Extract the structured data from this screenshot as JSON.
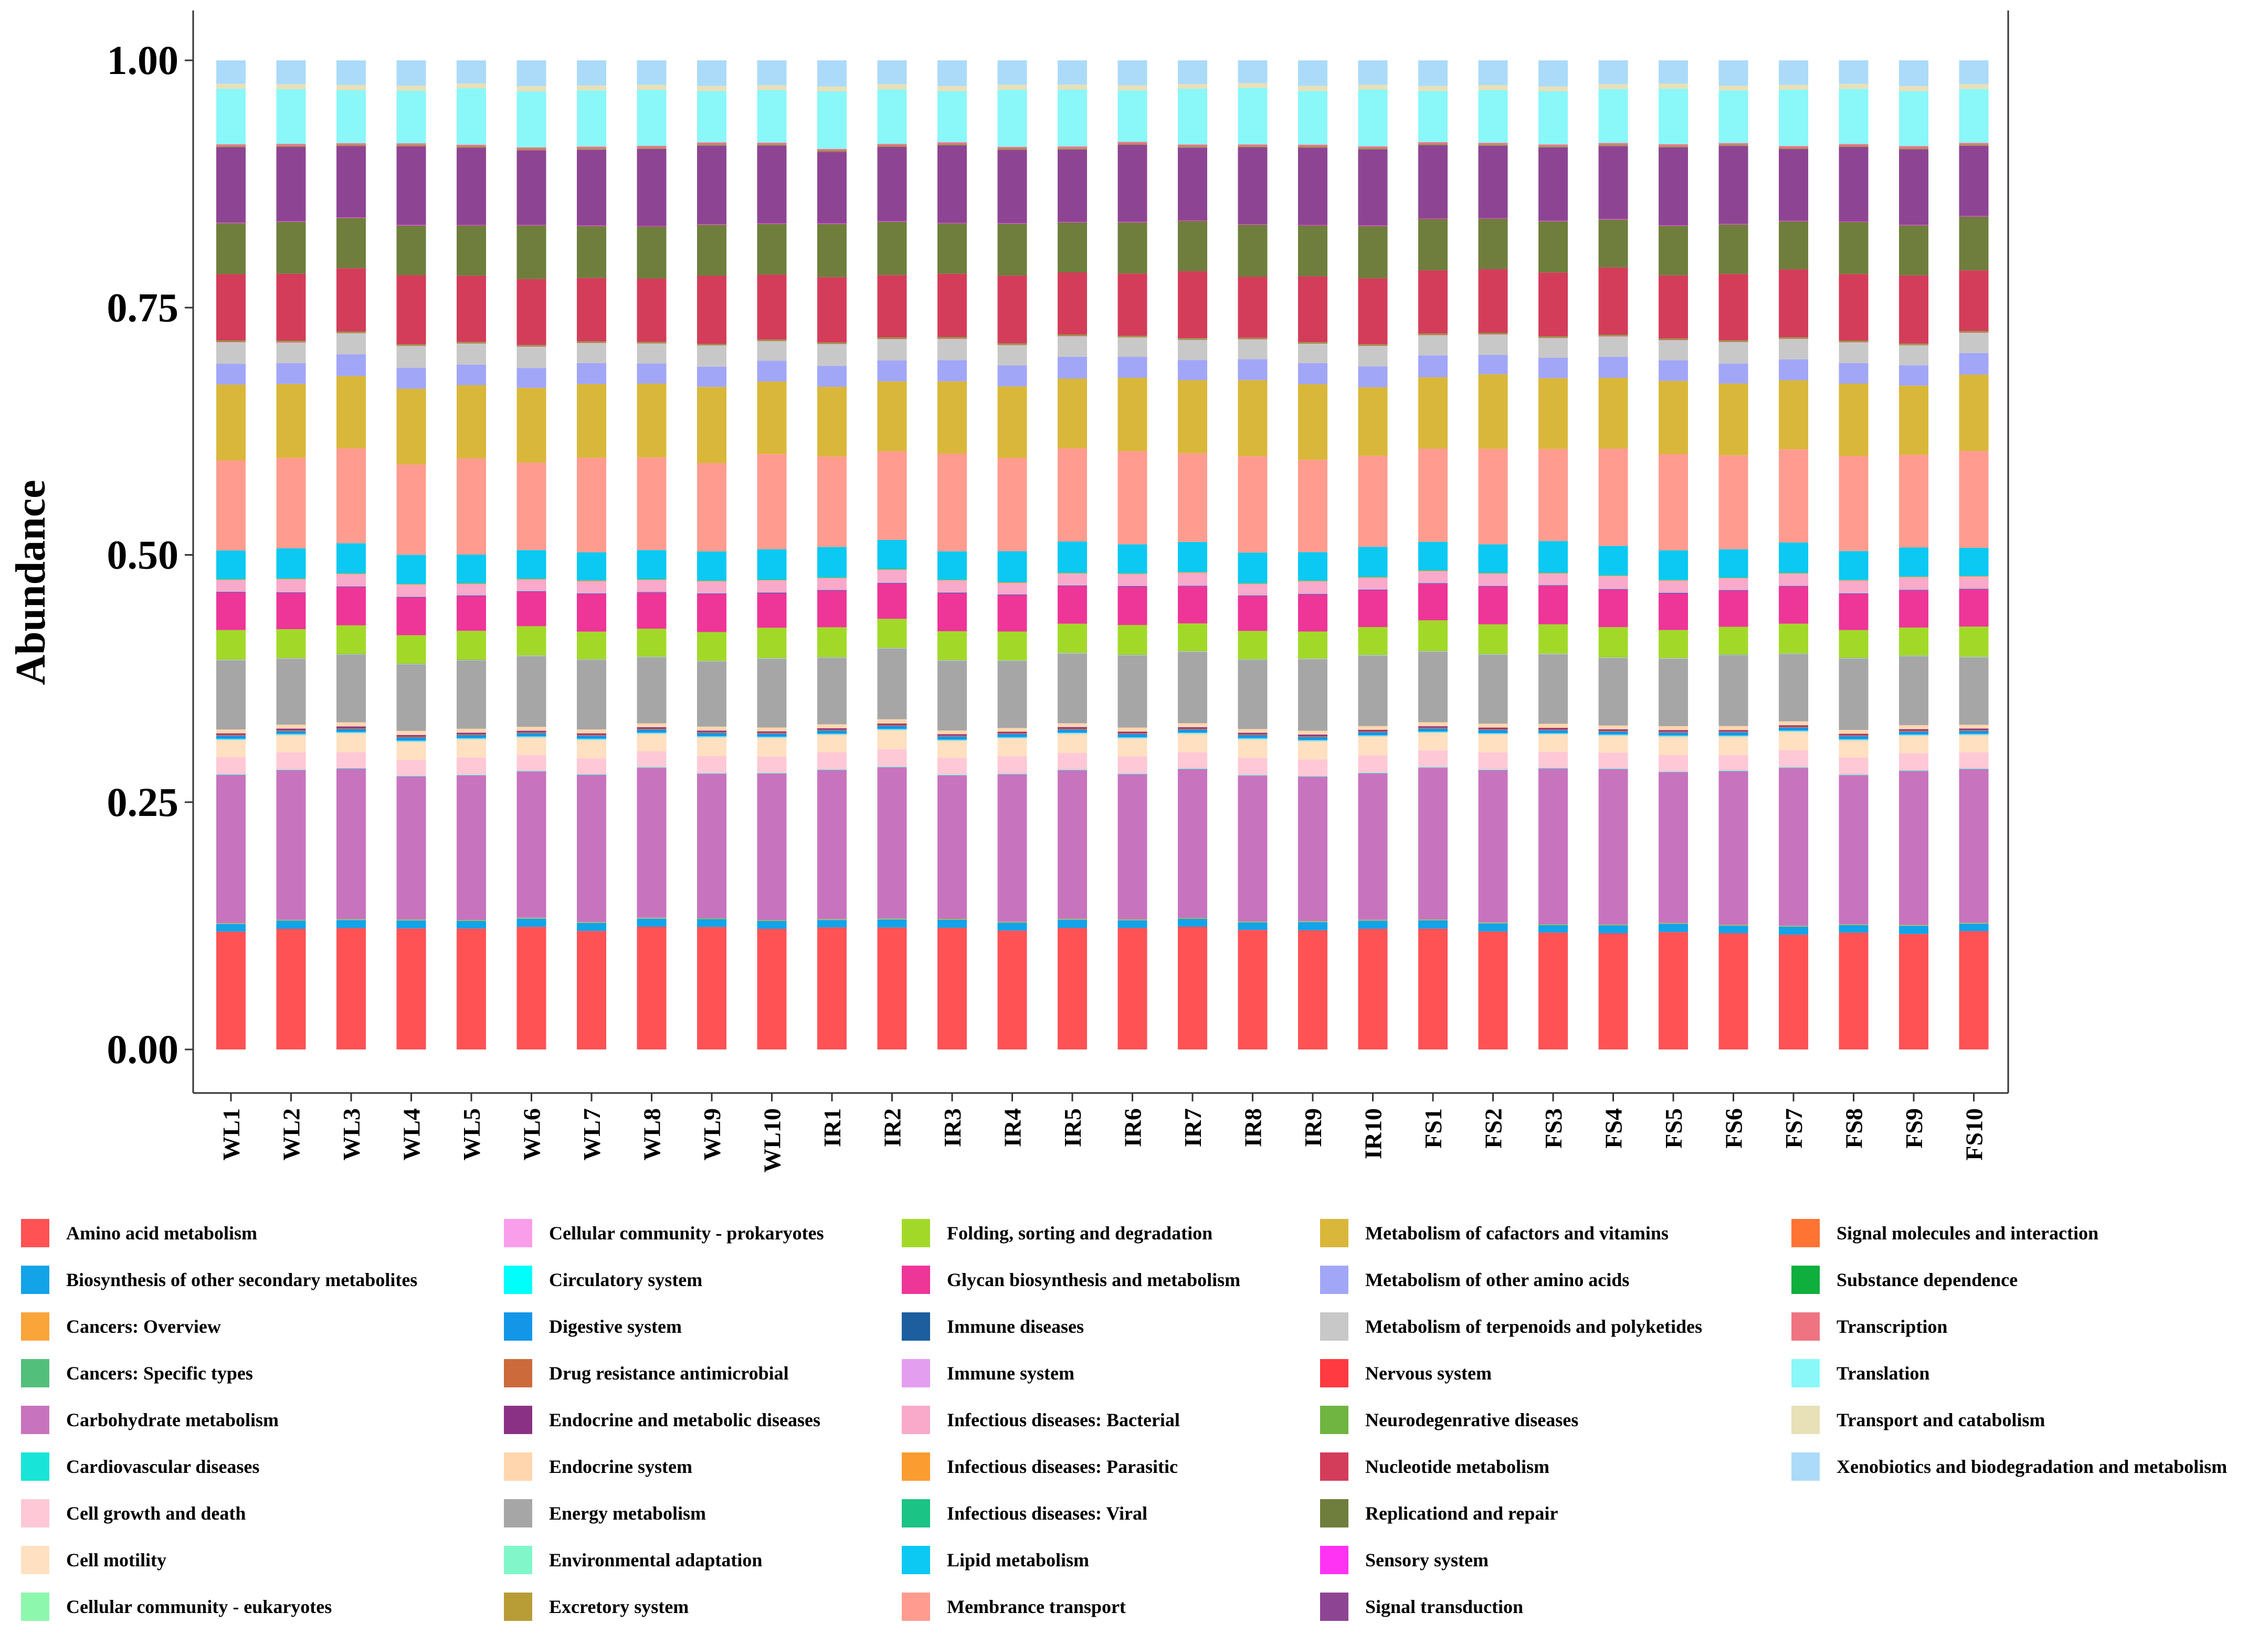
{
  "chart_data": {
    "type": "bar",
    "stacked": true,
    "title": "",
    "xlabel": "",
    "ylabel": "Abundance",
    "ylim": [
      0,
      1
    ],
    "yticks": [
      "0.00",
      "0.25",
      "0.50",
      "0.75",
      "1.00"
    ],
    "categories": [
      "WL1",
      "WL2",
      "WL3",
      "WL4",
      "WL5",
      "WL6",
      "WL7",
      "WL8",
      "WL9",
      "WL10",
      "IR1",
      "IR2",
      "IR3",
      "IR4",
      "IR5",
      "IR6",
      "IR7",
      "IR8",
      "IR9",
      "IR10",
      "FS1",
      "FS2",
      "FS3",
      "FS4",
      "FS5",
      "FS6",
      "FS7",
      "FS8",
      "FS9",
      "FS10"
    ],
    "series": [
      {
        "name": "Amino acid metabolism",
        "color": "#FF5255",
        "base": 0.121,
        "values": [
          0.121,
          0.122,
          0.122,
          0.122,
          0.124,
          0.125,
          0.121,
          0.123,
          0.124,
          0.123,
          0.123,
          0.122,
          0.124,
          0.121,
          0.122,
          0.124,
          0.124,
          0.123,
          0.123,
          0.123,
          0.122,
          0.121,
          0.118,
          0.119,
          0.12,
          0.119,
          0.118,
          0.12,
          0.118,
          0.121
        ]
      },
      {
        "name": "Biosynthesis of other secondary metabolites",
        "color": "#12A3E8",
        "base": 0.008
      },
      {
        "name": "Cancers: Overview",
        "color": "#F9A53A",
        "base": 0.0005
      },
      {
        "name": "Cancers: Specific types",
        "color": "#52C07A",
        "base": 0.0005
      },
      {
        "name": "Carbohydrate metabolism",
        "color": "#C873BE",
        "base": 0.152,
        "values": [
          0.152,
          0.151,
          0.151,
          0.144,
          0.148,
          0.149,
          0.15,
          0.15,
          0.146,
          0.149,
          0.15,
          0.151,
          0.146,
          0.15,
          0.149,
          0.148,
          0.15,
          0.15,
          0.149,
          0.149,
          0.153,
          0.156,
          0.157,
          0.159,
          0.154,
          0.157,
          0.162,
          0.153,
          0.157,
          0.157
        ]
      },
      {
        "name": "Cardiovascular diseases",
        "color": "#18E5D8",
        "base": 0.0005
      },
      {
        "name": "Cell growth and death",
        "color": "#FFC8D6",
        "base": 0.017
      },
      {
        "name": "Cell motility",
        "color": "#FFE0C0",
        "base": 0.018
      },
      {
        "name": "Cellular community - eukaryotes",
        "color": "#8EF7AE",
        "base": 0.0005
      },
      {
        "name": "Cellular community - prokaryotes",
        "color": "#F99EEB",
        "base": 0.0005
      },
      {
        "name": "Circulatory system",
        "color": "#00FFFB",
        "base": 0.0005
      },
      {
        "name": "Digestive system",
        "color": "#1396E8",
        "base": 0.003
      },
      {
        "name": "Drug resistance antimicrobial",
        "color": "#CC6A3B",
        "base": 0.001
      },
      {
        "name": "Endocrine and metabolic diseases",
        "color": "#8B3185",
        "base": 0.0015
      },
      {
        "name": "Endocrine system",
        "color": "#FFD6AE",
        "base": 0.004
      },
      {
        "name": "Energy metabolism",
        "color": "#A6A6A6",
        "base": 0.07
      },
      {
        "name": "Environmental adaptation",
        "color": "#81F7C9",
        "base": 0.0005
      },
      {
        "name": "Excretory system",
        "color": "#B89C35",
        "base": 0.0005
      },
      {
        "name": "Folding, sorting and degradation",
        "color": "#A2D929",
        "base": 0.029
      },
      {
        "name": "Glycan biosynthesis and metabolism",
        "color": "#EE3598",
        "base": 0.037
      },
      {
        "name": "Immune diseases",
        "color": "#1D5E9E",
        "base": 0.0005
      },
      {
        "name": "Immune system",
        "color": "#E49EF0",
        "base": 0.0005
      },
      {
        "name": "Infectious diseases: Bacterial",
        "color": "#F9A9C9",
        "base": 0.012
      },
      {
        "name": "Infectious diseases: Parasitic",
        "color": "#FA9C30",
        "base": 0.0005
      },
      {
        "name": "Infectious diseases: Viral",
        "color": "#1BC384",
        "base": 0.0005
      },
      {
        "name": "Lipid metabolism",
        "color": "#0BC9F2",
        "base": 0.03
      },
      {
        "name": "Membrance transport",
        "color": "#FF9C8F",
        "base": 0.094
      },
      {
        "name": "Metabolism of cafactors and vitamins",
        "color": "#D9B73A",
        "base": 0.074
      },
      {
        "name": "Metabolism of other amino acids",
        "color": "#A2A6F7",
        "base": 0.021
      },
      {
        "name": "Metabolism of terpenoids and polyketides",
        "color": "#C8C8C8",
        "base": 0.021
      },
      {
        "name": "Nervous system",
        "color": "#FF3A40",
        "base": 0.0005
      },
      {
        "name": "Neurodegenrative diseases",
        "color": "#70B441",
        "base": 0.001
      },
      {
        "name": "Nucleotide metabolism",
        "color": "#D33D5A",
        "base": 0.066
      },
      {
        "name": "Replicationd and repair",
        "color": "#6F7E3C",
        "base": 0.052
      },
      {
        "name": "Sensory system",
        "color": "#FF33F3",
        "base": 0.0005
      },
      {
        "name": "Signal transduction",
        "color": "#8D4593",
        "base": 0.076
      },
      {
        "name": "Signal molecules and interaction",
        "color": "#FF7333",
        "base": 0.0005
      },
      {
        "name": "Substance dependence",
        "color": "#0FAF3D",
        "base": 0.0005
      },
      {
        "name": "Transcription",
        "color": "#EE7482",
        "base": 0.002
      },
      {
        "name": "Translation",
        "color": "#8AF7F9",
        "base": 0.055
      },
      {
        "name": "Transport and catabolism",
        "color": "#E8E0B7",
        "base": 0.005
      },
      {
        "name": "Xenobiotics and biodegradation and metabolism",
        "color": "#ABDBF9",
        "base": 0.025
      }
    ]
  }
}
